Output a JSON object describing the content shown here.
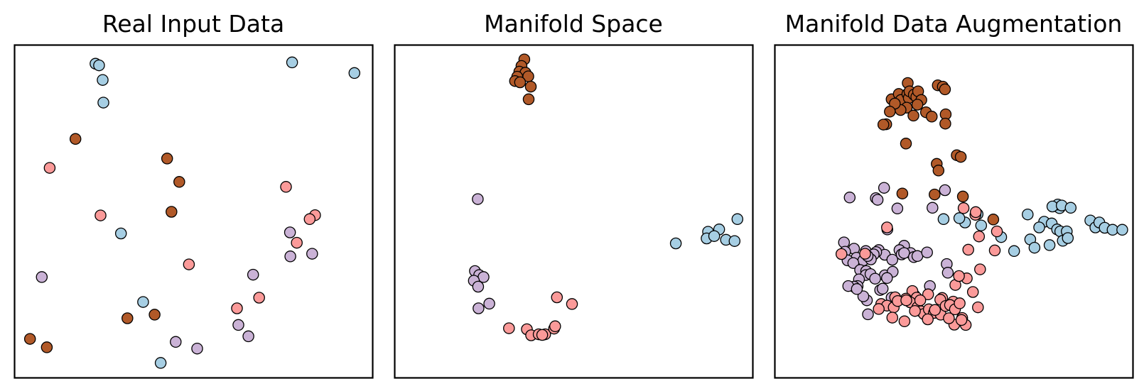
{
  "chart_data": [
    {
      "type": "scatter",
      "title": "Real Input Data",
      "xlim": [
        0,
        100
      ],
      "ylim": [
        0,
        100
      ],
      "ticks": "none",
      "series": [
        {
          "color": "#A6CEE3",
          "x": [
            22.6,
            23.6,
            24.6,
            24.8,
            77.5,
            94.9,
            29.7,
            35.9,
            40.8
          ],
          "y": [
            94.4,
            93.9,
            89.5,
            82.7,
            94.8,
            91.6,
            43.4,
            22.8,
            4.5
          ]
        },
        {
          "color": "#B15928",
          "x": [
            17.0,
            42.6,
            46.0,
            43.8,
            31.5,
            39.1,
            4.3,
            9.0
          ],
          "y": [
            71.8,
            65.9,
            58.9,
            49.9,
            17.9,
            19.0,
            11.7,
            9.2
          ]
        },
        {
          "color": "#FB9A99",
          "x": [
            9.8,
            24.0,
            48.7,
            75.8,
            83.9,
            82.4,
            78.8,
            62.1,
            68.3
          ],
          "y": [
            63.1,
            48.8,
            34.1,
            57.4,
            48.9,
            47.7,
            40.6,
            20.9,
            24.1
          ]
        },
        {
          "color": "#CAB2D6",
          "x": [
            7.6,
            76.9,
            77.0,
            83.1,
            66.6,
            62.5,
            65.3,
            45.0,
            51.0
          ],
          "y": [
            30.3,
            43.7,
            36.5,
            37.3,
            31.0,
            15.9,
            12.5,
            10.8,
            8.8
          ]
        }
      ]
    },
    {
      "type": "scatter",
      "title": "Manifold Space",
      "xlim": [
        0,
        100
      ],
      "ylim": [
        0,
        100
      ],
      "ticks": "none",
      "series": [
        {
          "color": "#B15928",
          "x": [
            36.2,
            35.4,
            34.8,
            36.5,
            34.2,
            37.3,
            33.6,
            35.0,
            38.0,
            37.4
          ],
          "y": [
            95.7,
            93.7,
            92.0,
            91.7,
            90.5,
            90.6,
            89.2,
            88.8,
            87.5,
            83.7
          ]
        },
        {
          "color": "#A6CEE3",
          "x": [
            78.5,
            87.5,
            90.6,
            87.1,
            89.2,
            95.7,
            92.5,
            94.9
          ],
          "y": [
            40.4,
            43.9,
            44.6,
            41.9,
            42.6,
            47.7,
            41.5,
            41.1
          ]
        },
        {
          "color": "#CAB2D6",
          "x": [
            23.2,
            22.4,
            23.6,
            24.8,
            22.1,
            23.3,
            26.4,
            23.4
          ],
          "y": [
            53.7,
            32.1,
            30.9,
            30.3,
            29.2,
            27.4,
            22.3,
            20.9
          ]
        },
        {
          "color": "#FB9A99",
          "x": [
            45.3,
            49.5,
            31.9,
            36.9,
            38.1,
            40.2,
            42.0,
            41.2,
            44.5,
            44.8
          ],
          "y": [
            24.2,
            22.2,
            14.9,
            14.6,
            12.8,
            13.1,
            13.1,
            12.9,
            14.8,
            15.5
          ]
        }
      ]
    },
    {
      "type": "scatter",
      "title": "Manifold Data Augmentation",
      "xlim": [
        0,
        100
      ],
      "ylim": [
        0,
        100
      ],
      "ticks": "none",
      "series": [
        {
          "color": "#B15928",
          "x": [
            37.1,
            45.5,
            46.9,
            47.5,
            32.6,
            34.6,
            35.2,
            37.0,
            37.4,
            37.6,
            38.8,
            39.5,
            40.0,
            40.9,
            39.8,
            36.8,
            35.1,
            33.5,
            32.1,
            38.7,
            42.2,
            43.8,
            47.7,
            47.6,
            31.1,
            30.3,
            36.6,
            50.8,
            51.9,
            45.2,
            45.7,
            44.6,
            52.5,
            35.6,
            61.0
          ],
          "y": [
            88.6,
            87.9,
            87.5,
            86.7,
            83.7,
            85.3,
            83.5,
            85.3,
            84.1,
            86.1,
            85.1,
            84.4,
            86.1,
            83.5,
            82.1,
            81.2,
            80.5,
            82.4,
            80.0,
            78.8,
            79.8,
            78.5,
            79.2,
            76.4,
            76.2,
            76.1,
            70.4,
            66.9,
            66.4,
            64.3,
            62.3,
            55.1,
            54.5,
            55.4,
            47.6
          ]
        },
        {
          "color": "#A6CEE3",
          "x": [
            79.5,
            79.0,
            77.5,
            80.1,
            82.6,
            88.1,
            89.5,
            90.6,
            92.1,
            94.3,
            97.0,
            70.6,
            75.2,
            73.8,
            77.3,
            78.8,
            79.7,
            81.5,
            80.4,
            81.8,
            76.7,
            71.3,
            72.5,
            66.8,
            63.2,
            56.6,
            57.6,
            53.1,
            51.5,
            47.1
          ],
          "y": [
            51.0,
            52.1,
            51.5,
            51.8,
            51.1,
            47.3,
            45.2,
            46.7,
            45.1,
            44.5,
            44.5,
            49.1,
            46.9,
            45.2,
            46.4,
            44.6,
            44.0,
            44.0,
            41.2,
            42.0,
            39.9,
            41.6,
            39.1,
            38.1,
            42.3,
            49.2,
            45.8,
            46.7,
            48.0,
            47.7
          ]
        },
        {
          "color": "#CAB2D6",
          "x": [
            30.5,
            28.2,
            20.9,
            28.7,
            34.2,
            19.3,
            22.1,
            25.4,
            29.0,
            36.1,
            30.7,
            28.3,
            22.8,
            27.6,
            34.8,
            37.9,
            24.7,
            26.8,
            25.9,
            19.6,
            20.3,
            21.9,
            23.8,
            25.5,
            25.4,
            23.5,
            23.1,
            22.1,
            30.7,
            32.8,
            35.4,
            36.1,
            38.8,
            39.8,
            31.4,
            47.5,
            44.0,
            42.5,
            48.0,
            48.3,
            43.3,
            32.9,
            31.3,
            26.7,
            28.0,
            29.4,
            30.1,
            32.6,
            25.7,
            24.7,
            20.5,
            22.9,
            26.0
          ],
          "y": [
            57.1,
            54.0,
            54.2,
            53.5,
            50.9,
            40.7,
            38.8,
            38.1,
            38.4,
            39.7,
            37.0,
            37.8,
            36.1,
            37.1,
            38.4,
            37.5,
            35.3,
            35.6,
            36.6,
            37.9,
            35.3,
            34.5,
            32.4,
            32.1,
            30.9,
            29.6,
            27.6,
            27.4,
            30.8,
            35.5,
            37.1,
            37.5,
            36.3,
            36.6,
            44.6,
            56.4,
            51.1,
            37.7,
            34.2,
            31.6,
            27.6,
            31.9,
            30.0,
            31.2,
            29.8,
            26.4,
            26.8,
            24.1,
            23.3,
            24.5,
            27.6,
            26.7,
            19.1
          ]
        },
        {
          "color": "#FB9A99",
          "x": [
            52.7,
            56.0,
            56.1,
            54.0,
            57.0,
            62.0,
            61.4,
            53.6,
            50.4,
            51.4,
            57.3,
            55.3,
            46.7,
            49.8,
            46.2,
            42.8,
            39.0,
            38.4,
            39.6,
            36.6,
            33.6,
            29.7,
            31.3,
            33.2,
            34.3,
            37.8,
            39.8,
            40.8,
            40.6,
            41.6,
            43.0,
            44.4,
            42.7,
            46.3,
            47.7,
            44.7,
            48.9,
            50.3,
            51.6,
            56.7,
            52.3,
            50.1,
            53.3,
            52.1,
            48.6,
            36.7,
            39.1,
            29.0,
            32.8,
            36.2,
            18.6,
            25.2,
            31.3
          ],
          "y": [
            51.0,
            49.0,
            49.8,
            38.5,
            42.5,
            44.0,
            38.3,
            29.9,
            27.9,
            30.6,
            32.6,
            25.8,
            24.0,
            22.9,
            23.5,
            25.1,
            24.8,
            26.1,
            24.1,
            23.8,
            24.2,
            22.2,
            21.7,
            21.2,
            23.1,
            22.7,
            21.2,
            20.0,
            23.3,
            19.2,
            20.6,
            19.5,
            17.6,
            19.0,
            21.6,
            20.4,
            21.9,
            20.6,
            22.4,
            21.2,
            18.0,
            16.0,
            15.9,
            17.4,
            17.9,
            23.3,
            20.1,
            20.7,
            18.1,
            17.0,
            37.2,
            37.3,
            45.2
          ]
        }
      ]
    }
  ]
}
